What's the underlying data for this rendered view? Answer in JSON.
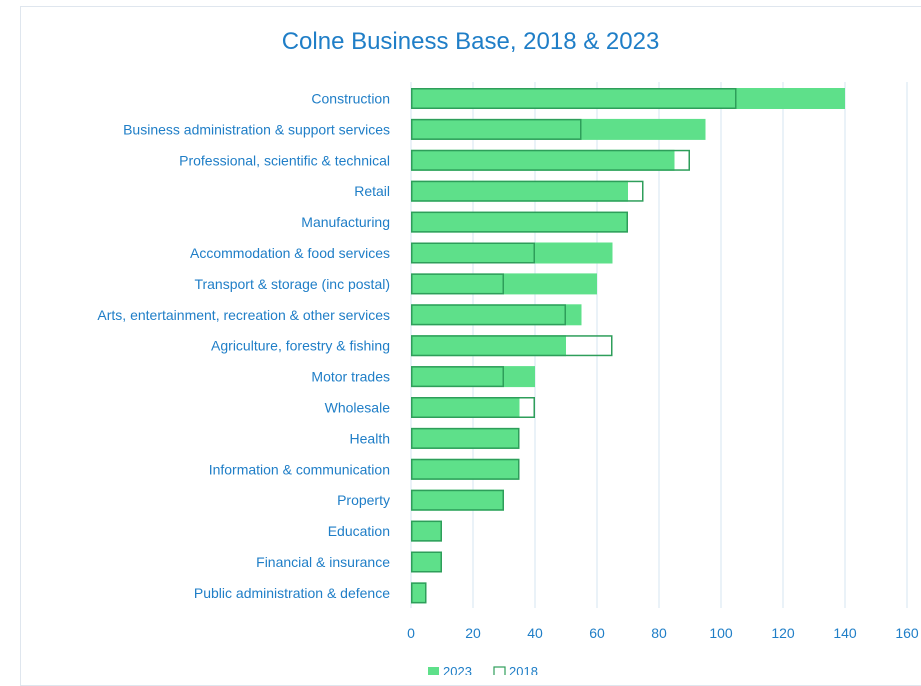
{
  "chart_data": {
    "type": "bar",
    "orientation": "horizontal",
    "title": "Colne Business Base, 2018 & 2023",
    "categories": [
      "Construction",
      "Business administration & support services",
      "Professional, scientific & technical",
      "Retail",
      "Manufacturing",
      "Accommodation & food services",
      "Transport & storage (inc postal)",
      "Arts, entertainment, recreation & other services",
      "Agriculture, forestry & fishing",
      "Motor trades",
      "Wholesale",
      "Health",
      "Information & communication",
      "Property",
      "Education",
      "Financial & insurance",
      "Public administration & defence"
    ],
    "series": [
      {
        "name": "2023",
        "style": "filled",
        "color": "#5ee08a",
        "values": [
          140,
          95,
          85,
          70,
          70,
          65,
          60,
          55,
          50,
          40,
          35,
          35,
          35,
          30,
          10,
          10,
          5
        ]
      },
      {
        "name": "2018",
        "style": "outline",
        "color": "#2e9e5a",
        "values": [
          105,
          55,
          90,
          75,
          70,
          40,
          30,
          50,
          65,
          30,
          40,
          35,
          35,
          30,
          10,
          10,
          5
        ]
      }
    ],
    "xlim": [
      0,
      160
    ],
    "xticks": [
      "0",
      "20",
      "40",
      "60",
      "80",
      "100",
      "120",
      "140",
      "160"
    ],
    "grid": "vertical",
    "legend_position": "bottom",
    "accent_color": "#1f7ec7"
  }
}
